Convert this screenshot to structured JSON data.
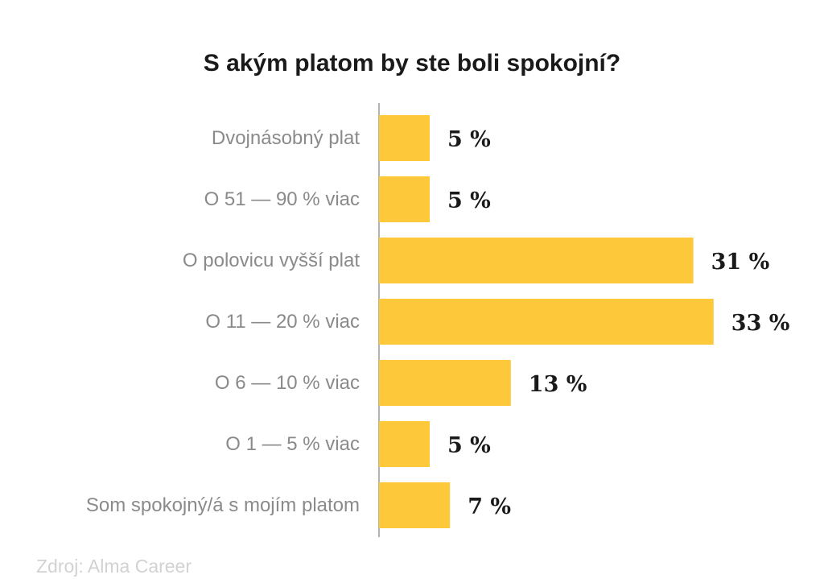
{
  "chart_data": {
    "type": "bar",
    "orientation": "horizontal",
    "title": "S akým platom by ste boli spokojní?",
    "categories": [
      "Dvojnásobný plat",
      "O 51 — 90 % viac",
      "O polovicu vyšší plat",
      "O 11 — 20 % viac",
      "O 6 — 10 % viac",
      "O 1 — 5 % viac",
      "Som spokojný/á s mojím platom"
    ],
    "values": [
      5,
      5,
      31,
      33,
      13,
      5,
      7
    ],
    "data_labels": [
      "5 %",
      "5 %",
      "31 %",
      "33 %",
      "13 %",
      "5 %",
      "7 %"
    ],
    "unit": "%",
    "bar_color": "#fdc93a",
    "axis_color": "#9a9a9a",
    "label_color": "#8a8a8a",
    "value_label_color": "#1a1a1a",
    "grid": false,
    "legend": "none"
  },
  "source": "Zdroj: Alma Career"
}
